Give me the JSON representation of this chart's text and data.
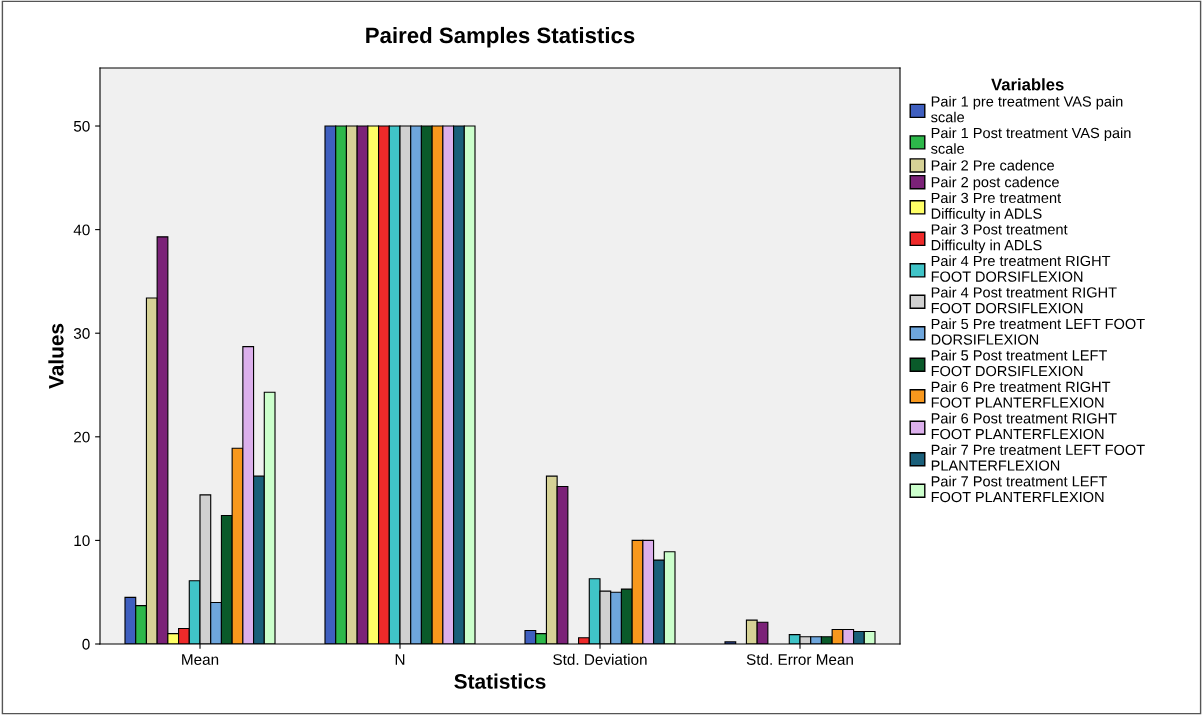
{
  "chart_data": {
    "type": "bar",
    "title": "Paired Samples Statistics",
    "xlabel": "Statistics",
    "ylabel": "Values",
    "legend_title": "Variables",
    "categories": [
      "Mean",
      "N",
      "Std. Deviation",
      "Std. Error Mean"
    ],
    "series": [
      {
        "name": "Pair 1 pre treatment VAS pain scale",
        "color": "#3f5fbf",
        "values": [
          4.5,
          50,
          1.3,
          0.2
        ]
      },
      {
        "name": "Pair 1 Post treatment VAS pain scale",
        "color": "#2db84a",
        "values": [
          3.7,
          50,
          1.0,
          null
        ]
      },
      {
        "name": "Pair 2 Pre cadence",
        "color": "#d6d296",
        "values": [
          33.4,
          50,
          16.2,
          2.3
        ]
      },
      {
        "name": "Pair 2 post cadence",
        "color": "#7b2278",
        "values": [
          39.3,
          50,
          15.2,
          2.1
        ]
      },
      {
        "name": "Pair 3 Pre treatment Difficulty in ADLS",
        "color": "#ffff66",
        "values": [
          1.0,
          50,
          null,
          null
        ]
      },
      {
        "name": "Pair 3 Post treatment Difficulty in ADLS",
        "color": "#ee2a2a",
        "values": [
          1.5,
          50,
          0.6,
          null
        ]
      },
      {
        "name": "Pair 4 Pre treatment RIGHT FOOT DORSIFLEXION",
        "color": "#40c4c8",
        "values": [
          6.1,
          50,
          6.3,
          0.9
        ]
      },
      {
        "name": "Pair 4 Post treatment RIGHT FOOT DORSIFLEXION",
        "color": "#d0d0d0",
        "values": [
          14.4,
          50,
          5.1,
          0.7
        ]
      },
      {
        "name": "Pair 5 Pre treatment LEFT FOOT DORSIFLEXION",
        "color": "#6ea6dc",
        "values": [
          4.0,
          50,
          5.0,
          0.7
        ]
      },
      {
        "name": "Pair 5 Post treatment LEFT FOOT DORSIFLEXION",
        "color": "#0a5a2a",
        "values": [
          12.4,
          50,
          5.3,
          0.7
        ]
      },
      {
        "name": "Pair 6 Pre treatment RIGHT FOOT PLANTERFLEXION",
        "color": "#f8981d",
        "values": [
          18.9,
          50,
          10.0,
          1.4
        ]
      },
      {
        "name": "Pair 6 Post treatment RIGHT FOOT PLANTERFLEXION",
        "color": "#dcb0ec",
        "values": [
          28.7,
          50,
          10.0,
          1.4
        ]
      },
      {
        "name": "Pair 7 Pre treatment LEFT FOOT PLANTERFLEXION",
        "color": "#1a5f7a",
        "values": [
          16.2,
          50,
          8.1,
          1.2
        ]
      },
      {
        "name": "Pair 7 Post treatment LEFT FOOT PLANTERFLEXION",
        "color": "#ccffcc",
        "values": [
          24.3,
          50,
          8.9,
          1.2
        ]
      }
    ],
    "ylim": [
      0,
      55.6
    ],
    "yticks": [
      0,
      10,
      20,
      30,
      40,
      50
    ],
    "grid": false,
    "legend": "right"
  }
}
